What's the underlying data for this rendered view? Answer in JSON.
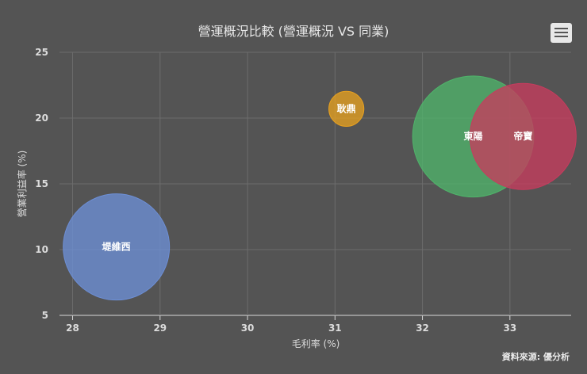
{
  "header": {
    "title": "營運概況比較 (營運概況 VS 同業)",
    "credit": "資料來源: 優分析"
  },
  "menu": {
    "icon": "hamburger-menu-icon"
  },
  "chart_data": {
    "type": "bubble",
    "title": "營運概況比較 (營運概況 VS 同業)",
    "xlabel": "毛利率 (%)",
    "ylabel": "營業利益率 (%)",
    "xlim": [
      27.85,
      33.7
    ],
    "ylim": [
      5,
      25
    ],
    "xticks": [
      28,
      29,
      30,
      31,
      32,
      33
    ],
    "yticks": [
      5,
      10,
      15,
      20,
      25
    ],
    "grid": true,
    "series": [
      {
        "name": "堤維西",
        "x": 28.5,
        "y": 10.2,
        "size": 1.0,
        "color": "#6d8fd6"
      },
      {
        "name": "耿鼎",
        "x": 31.13,
        "y": 20.7,
        "size": 0.33,
        "color": "#e6a020"
      },
      {
        "name": "東陽",
        "x": 32.58,
        "y": 18.6,
        "size": 1.14,
        "color": "#4fb36a"
      },
      {
        "name": "帝寶",
        "x": 33.15,
        "y": 18.6,
        "size": 1.0,
        "color": "#c73c5e"
      }
    ]
  }
}
